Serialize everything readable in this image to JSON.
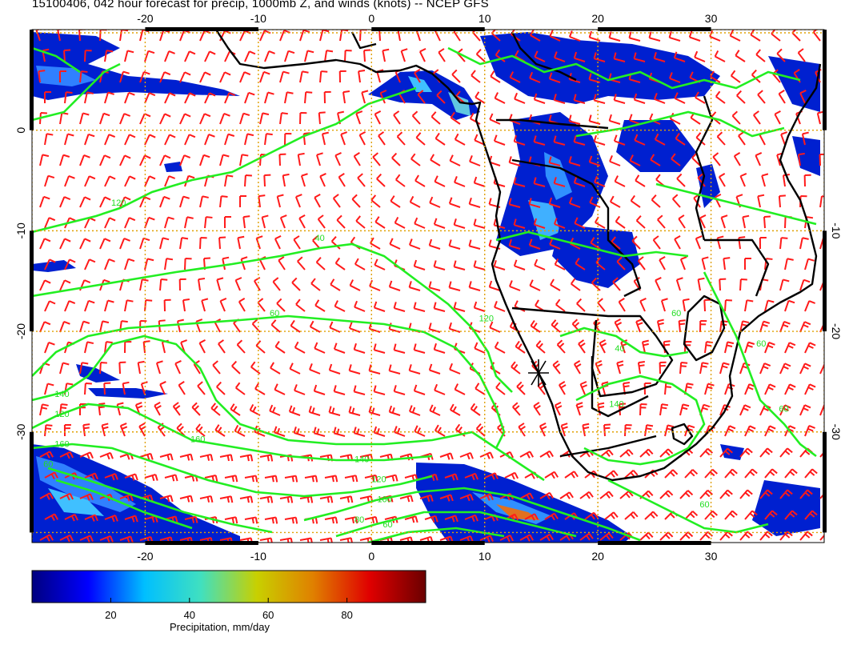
{
  "title": "15100406, 042 hour forecast for precip, 1000mb Z, and winds (knots) -- NCEP GFS",
  "map": {
    "lon_min": -30,
    "lon_max": 40,
    "lat_min": -41,
    "lat_max": 10,
    "top_lon_ticks": [
      "-20",
      "-10",
      "0",
      "10",
      "20",
      "30"
    ],
    "bottom_lon_ticks": [
      "-20",
      "-10",
      "0",
      "10",
      "20",
      "30"
    ],
    "left_lat_ticks": [
      "0",
      "-10",
      "-20",
      "-30"
    ],
    "right_lat_ticks": [
      "-10",
      "-20",
      "-30"
    ],
    "grid_color": "#e0a000",
    "contour_color": "#22ee22",
    "barb_color": "#ff1a1a",
    "coast_color": "#000000",
    "contour_labels": [
      {
        "text": "120",
        "lon": -23,
        "lat": -7.5
      },
      {
        "text": "40",
        "lon": -5,
        "lat": -11
      },
      {
        "text": "60",
        "lon": -9,
        "lat": -18.5
      },
      {
        "text": "120",
        "lon": 9.5,
        "lat": -19
      },
      {
        "text": "140",
        "lon": -28,
        "lat": -26.5
      },
      {
        "text": "120",
        "lon": -28,
        "lat": -28.5
      },
      {
        "text": "160",
        "lon": -28,
        "lat": -31.5
      },
      {
        "text": "60",
        "lon": -29,
        "lat": -33.5
      },
      {
        "text": "160",
        "lon": -16,
        "lat": -31
      },
      {
        "text": "140",
        "lon": -1.5,
        "lat": -33
      },
      {
        "text": "120",
        "lon": 0,
        "lat": -35
      },
      {
        "text": "100",
        "lon": 0.5,
        "lat": -37
      },
      {
        "text": "80",
        "lon": -1.5,
        "lat": -39
      },
      {
        "text": "60",
        "lon": 1,
        "lat": -39.5
      },
      {
        "text": "140",
        "lon": 21,
        "lat": -27.5
      },
      {
        "text": "60",
        "lon": 26.5,
        "lat": -18.5
      },
      {
        "text": "40",
        "lon": 21.5,
        "lat": -22
      },
      {
        "text": "60",
        "lon": 36,
        "lat": -28
      },
      {
        "text": "60",
        "lon": 29,
        "lat": -37.5
      },
      {
        "text": "60",
        "lon": 34,
        "lat": -21.5
      }
    ]
  },
  "colorbar": {
    "ticks": [
      "20",
      "40",
      "60",
      "80"
    ],
    "tick_values": [
      20,
      40,
      60,
      80
    ],
    "min": 0,
    "max": 100,
    "label": "Precipitation, mm/day",
    "stops": [
      "#00007f",
      "#0000ff",
      "#00bfff",
      "#40e0c0",
      "#c8d000",
      "#e08000",
      "#e00000",
      "#6b0000"
    ]
  }
}
